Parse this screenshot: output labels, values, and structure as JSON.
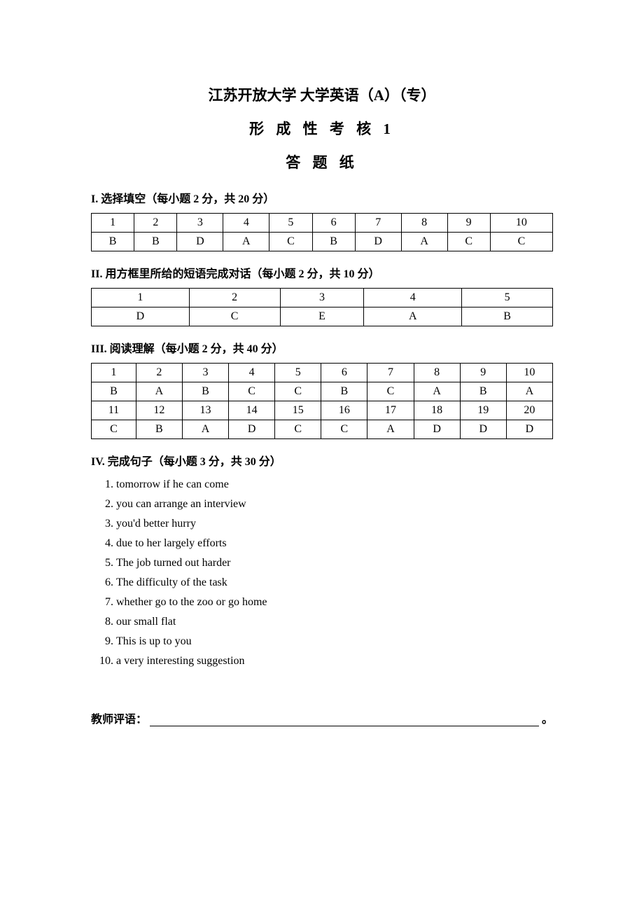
{
  "header": {
    "university": "江苏开放大学  大学英语（A）（专）",
    "exam_type": "形 成 性 考 核 1",
    "paper_label": "答 题 纸"
  },
  "section1": {
    "title": "I. 选择填空（每小题 2 分，共 20 分）",
    "nums": [
      "1",
      "2",
      "3",
      "4",
      "5",
      "6",
      "7",
      "8",
      "9",
      "10"
    ],
    "answers": [
      "B",
      "B",
      "D",
      "A",
      "C",
      "B",
      "D",
      "A",
      "C",
      "C"
    ]
  },
  "section2": {
    "title": "II. 用方框里所给的短语完成对话（每小题 2 分，共 10 分）",
    "nums": [
      "1",
      "2",
      "3",
      "4",
      "5"
    ],
    "answers": [
      "D",
      "C",
      "E",
      "A",
      "B"
    ]
  },
  "section3": {
    "title": "III. 阅读理解（每小题 2 分，共 40 分）",
    "nums1": [
      "1",
      "2",
      "3",
      "4",
      "5",
      "6",
      "7",
      "8",
      "9",
      "10"
    ],
    "answers1": [
      "B",
      "A",
      "B",
      "C",
      "C",
      "B",
      "C",
      "A",
      "B",
      "A"
    ],
    "nums2": [
      "11",
      "12",
      "13",
      "14",
      "15",
      "16",
      "17",
      "18",
      "19",
      "20"
    ],
    "answers2": [
      "C",
      "B",
      "A",
      "D",
      "C",
      "C",
      "A",
      "D",
      "D",
      "D"
    ]
  },
  "section4": {
    "title": "IV. 完成句子（每小题 3 分，共 30 分）",
    "items": [
      {
        "n": "1.",
        "t": "tomorrow if he can come"
      },
      {
        "n": "2.",
        "t": "you can arrange an interview"
      },
      {
        "n": "3.",
        "t": "you'd better hurry"
      },
      {
        "n": "4.",
        "t": "due to her largely efforts"
      },
      {
        "n": "5.",
        "t": "The job turned out harder"
      },
      {
        "n": "6.",
        "t": "The difficulty of the task"
      },
      {
        "n": "7.",
        "t": "whether go to the zoo or go home"
      },
      {
        "n": "8.",
        "t": "our small flat"
      },
      {
        "n": "9.",
        "t": "This is up to you"
      },
      {
        "n": "10.",
        "t": "a very interesting suggestion"
      }
    ]
  },
  "footer": {
    "teacher_label": "教师评语：",
    "period": "。"
  }
}
